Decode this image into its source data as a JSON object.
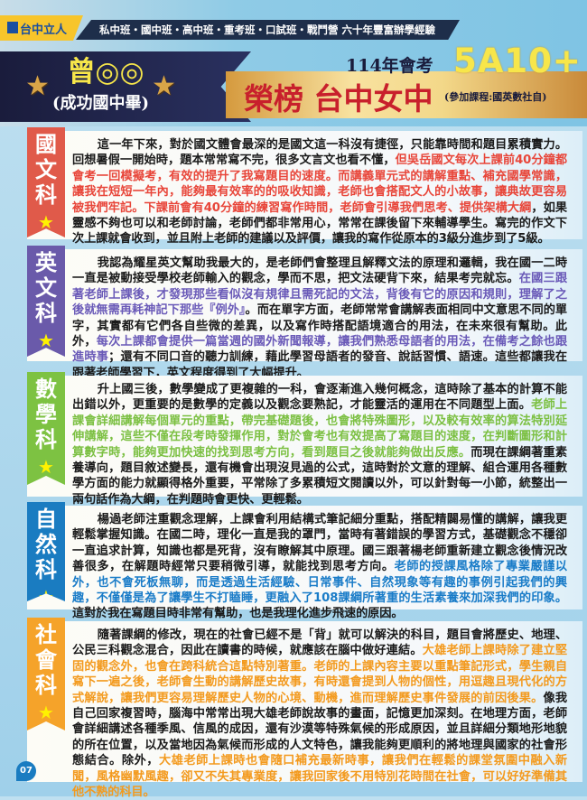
{
  "header": {
    "logo": "台中立人",
    "tagline": "私中班・國中班・高中班・重考班・口試班・戰鬥營  六十年豐富辦學經驗",
    "student_name": "曾◎◎",
    "student_school": "(成功國中畢)",
    "exam_year": "114年會考",
    "score": "5A10+",
    "honor": "榮榜 台中女中",
    "courses": "(參加課程:國英數社自)"
  },
  "colors": {
    "chinese": "#e05a4a",
    "english": "#6a5aaa",
    "math": "#7dc242",
    "science": "#1a7cc1",
    "social": "#f5a32a"
  },
  "sections": [
    {
      "subject": "國文科",
      "color": "#e05a4a",
      "hl": "#e8463a",
      "segments": [
        {
          "t": "這一年下來，對於國文體會最深的是國文這一科沒有捷徑，只能靠時間和題目累積實力。回想暑假一開始時，題本常常寫不完，很多文言文也看不懂，",
          "h": false
        },
        {
          "t": "但吳岳國文每次上課前40分鐘都會考一回模擬考，有效的提升了我寫題目的速度。而講義單元式的講解重點、補充國學常識，讓我在短短一年內，能夠最有效率的的吸收知識，老師也會搭配文人的小故事，讓典故更容易被我們牢記。下課前會有40分鐘的練習寫作時間，老師會引導我們思考、提供架構大綱",
          "h": true
        },
        {
          "t": "，如果靈感不夠也可以和老師討論，老師們都非常用心，常常在課後留下來輔導學生。寫完的作文下次上課就會收到，並且附上老師的建議以及評價，讓我的寫作從原本的3級分進步到了5級。",
          "h": false
        }
      ]
    },
    {
      "subject": "英文科",
      "color": "#6a5aaa",
      "hl": "#6a5ab8",
      "segments": [
        {
          "t": "我認為耀星英文幫助我最大的，是老師們會整理且解釋文法的原理和邏輯，我在國一二時一直是被動接受學校老師輸入的觀念，學而不思，把文法硬背下來，結果考完就忘。",
          "h": false
        },
        {
          "t": "在國三跟著老師上課後，才發現那些看似沒有規律且需死記的文法，背後有它的原因和規則，理解了之後就無需再耗神記下那些『例外』",
          "h": true
        },
        {
          "t": "。而在單字方面，老師常常會講解表面相同中文意思不同的單字，其實都有它們各自些微的差異，以及寫作時搭配語境適合的用法，在未來很有幫助。此外，",
          "h": false
        },
        {
          "t": "每次上課都會提供一篇當週的國外新聞報導，讓我們熟悉母語者的用法，在備考之餘也跟進時事",
          "h": true
        },
        {
          "t": "；還有不同口音的聽力訓練，藉此學習母語者的發音、說話習慣、語速。這些都讓我在跟著老師學習下，英文程度得到了大幅提升。",
          "h": false
        }
      ]
    },
    {
      "subject": "數學科",
      "color": "#7dc242",
      "hl": "#7cc043",
      "segments": [
        {
          "t": "升上國三後，數學變成了更複雜的一科，會逐漸進入幾何概念，這時除了基本的計算不能出錯以外，更重要的是數學的定義以及觀念要熟記，才能靈活的運用在不同題型上面。",
          "h": false
        },
        {
          "t": "老師上課會詳細講解每個單元的重點，帶完基礎題後，也會將特殊圖形，以及較有效率的算法特別延伸講解，這些不僅在段考時發揮作用，對於會考也有效提高了寫題目的速度，在判斷圖形和計算數字時，能夠更加快速的找到思考方向，看到題目之後就能夠做出反應。",
          "h": true
        },
        {
          "t": "而現在課綱著重素養導向，題目敘述變長，還有機會出現沒見過的公式，這時對於文意的理解、組合運用各種數學方面的能力就顯得格外重要，平常除了多累積短文閱讀以外，可以針對每一小節，統整出一兩句話作為大綱，在判題時會更快、更輕鬆。",
          "h": false
        }
      ]
    },
    {
      "subject": "自然科",
      "color": "#1a7cc1",
      "hl": "#1a7cc8",
      "segments": [
        {
          "t": "楊過老師注重觀念理解，上課會利用結構式筆記細分重點，搭配精闢易懂的講解，讓我更輕鬆掌握知識。在國二時，理化一直是我的罩門，當時有著錯誤的學習方式，基礎觀念不穩卻一直追求計算，知識也都是死背，沒有瞭解其中原理。國三跟著楊老師重新建立觀念後情況改善很多，在解題時經常只要稍微引導，就能找到思考方向。",
          "h": false
        },
        {
          "t": "老師的授課風格除了專業嚴謹以外，也不會死板無聊，而是透過生活經驗、日常事件、自然現象等有趣的事例引起我們的興趣，不僅僅是為了讓學生不打瞌睡，更融入了108課綱所著重的生活素養來加深我們的印象。",
          "h": true
        },
        {
          "t": "這對於我在寫題目時非常有幫助，也是我理化進步飛速的原因。",
          "h": false
        }
      ]
    },
    {
      "subject": "社會科",
      "color": "#f5a32a",
      "hl": "#f39a1e",
      "segments": [
        {
          "t": "隨著課綱的修改，現在的社會已經不是「背」就可以解決的科目，題目會將歷史、地理、公民三科觀念混合，因此在讀書的時候，就應該在腦中做好連結。",
          "h": false
        },
        {
          "t": "大雄老師上課時除了建立堅固的觀念外，也會在跨科統合這點特別著重。老師的上課內容主要以重點筆記形式，學生親自寫下一遍之後，老師會生動的講解歷史故事，有時還會提到人物的個性，用逗趣且現代化的方式解說，讓我們更容易理解歷史人物的心境、動機，進而理解歷史事件發展的前因後果。",
          "h": true
        },
        {
          "t": "像我自己回家複習時，腦海中常常出現大雄老師說故事的畫面，記憶更加深刻。在地理方面，老師會詳細講述各種季風、信風的成因，還有沙漠等特殊氣候的形成原因，並且詳細分類地形地貌的所在位置，以及當地因為氣候而形成的人文特色，讓我能夠更順利的將地理與國家的社會形態結合。除外，",
          "h": false
        },
        {
          "t": "大雄老師上課時也會隨口補充最新時事，讓我們在輕鬆的課堂氛圍中融入新聞，風格幽默風趣，卻又不失其專業度，讓我回家後不用特別花時間在社會，可以好好準備其他不熟的科目。",
          "h": true
        }
      ]
    }
  ],
  "page_number": "07"
}
